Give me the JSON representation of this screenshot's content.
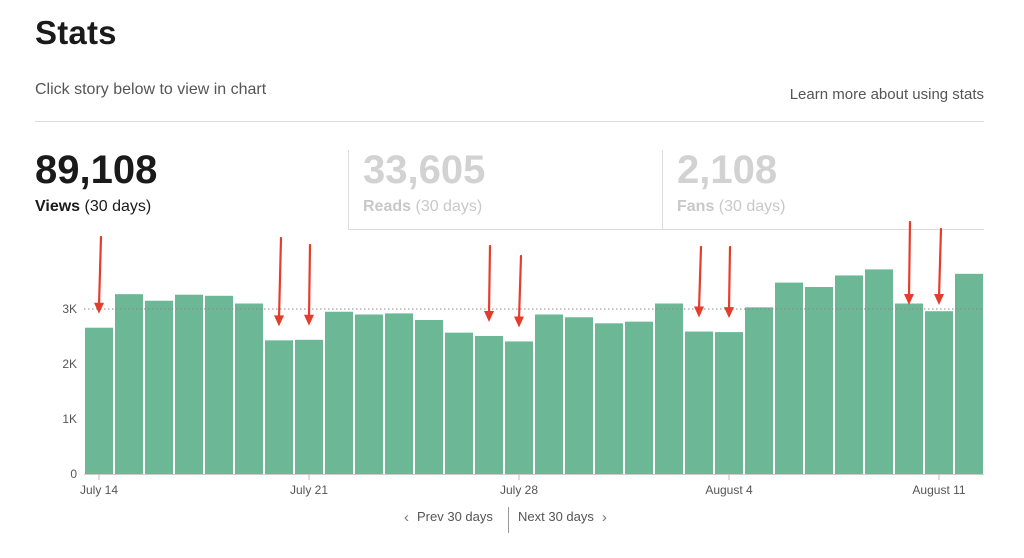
{
  "header": {
    "title": "Stats",
    "subtitle": "Click story below to view in chart",
    "learn_more": "Learn more about using stats"
  },
  "stats": {
    "views": {
      "value": "89,108",
      "label": "Views",
      "period": "(30 days)"
    },
    "reads": {
      "value": "33,605",
      "label": "Reads",
      "period": "(30 days)"
    },
    "fans": {
      "value": "2,108",
      "label": "Fans",
      "period": "(30 days)"
    }
  },
  "pager": {
    "prev": "Prev 30 days",
    "next": "Next 30 days"
  },
  "colors": {
    "bar": "#6cb896",
    "arrow": "#e53d2c",
    "reference_line": "#888888"
  },
  "chart_data": {
    "type": "bar",
    "x": [
      "July 14",
      "July 15",
      "July 16",
      "July 17",
      "July 18",
      "July 19",
      "July 20",
      "July 21",
      "July 22",
      "July 23",
      "July 24",
      "July 25",
      "July 26",
      "July 27",
      "July 28",
      "July 29",
      "July 30",
      "July 31",
      "August 1",
      "August 2",
      "August 3",
      "August 4",
      "August 5",
      "August 6",
      "August 7",
      "August 8",
      "August 9",
      "August 10",
      "August 11",
      "August 12"
    ],
    "values": [
      2660,
      3270,
      3150,
      3260,
      3240,
      3100,
      2430,
      2440,
      2950,
      2900,
      2920,
      2800,
      2570,
      2510,
      2410,
      2900,
      2850,
      2740,
      2770,
      3100,
      2590,
      2580,
      3030,
      3480,
      3400,
      3610,
      3720,
      3100,
      2960,
      3640
    ],
    "xtick_labels": [
      "July 14",
      "July 21",
      "July 28",
      "August 4",
      "August 11"
    ],
    "xtick_positions": [
      "July 14",
      "July 21",
      "July 28",
      "August 4",
      "August 11"
    ],
    "yticks": [
      0,
      1000,
      2000,
      3000
    ],
    "ytick_labels": [
      "0",
      "1K",
      "2K",
      "3K"
    ],
    "ylim": [
      0,
      3950
    ],
    "reference_line": 3000,
    "annotations": {
      "type": "arrow",
      "points_to": [
        "July 14",
        "July 20",
        "July 21",
        "July 27",
        "July 28",
        "August 3",
        "August 4",
        "August 10",
        "August 11"
      ]
    },
    "grid": false,
    "legend": "none"
  }
}
